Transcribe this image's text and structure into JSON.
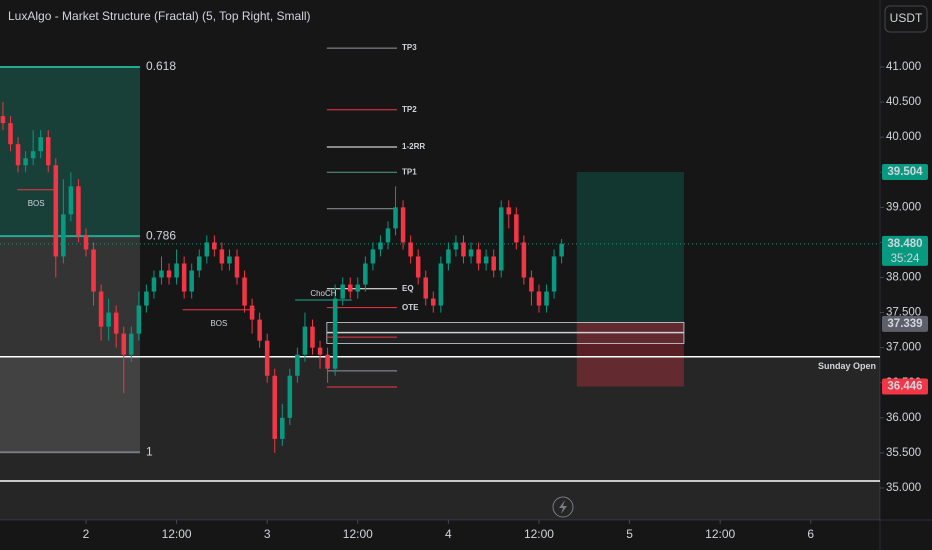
{
  "chart_data": {
    "type": "candlestick",
    "title": "LuxAlgo - Market Structure (Fractal) (5, Top Right, Small)",
    "currency": "USDT",
    "up_color": "#089981",
    "down_color": "#f23645",
    "x": [
      -11,
      -10,
      -9,
      -8,
      -7,
      -6,
      -5,
      -4,
      -3,
      -2,
      -1,
      0,
      1,
      2,
      3,
      4,
      5,
      6,
      7,
      8,
      9,
      10,
      11,
      12,
      13,
      14,
      15,
      16,
      17,
      18,
      19,
      20,
      21,
      22,
      23,
      24,
      25,
      26,
      27,
      28,
      29,
      30,
      31,
      32,
      33,
      34,
      35,
      36,
      37,
      38,
      39,
      40,
      41,
      42,
      43,
      44,
      45,
      46,
      47,
      48,
      49,
      50,
      51,
      52,
      53,
      54,
      55,
      56,
      57,
      58,
      59,
      60,
      61,
      62,
      63
    ],
    "open": [
      40.3,
      40.2,
      39.9,
      39.6,
      39.7,
      39.8,
      40.0,
      39.6,
      38.3,
      38.9,
      39.3,
      38.6,
      38.4,
      37.8,
      37.3,
      37.5,
      37.2,
      36.9,
      37.2,
      37.6,
      37.8,
      38.0,
      38.1,
      38.0,
      38.2,
      37.8,
      38.1,
      38.3,
      38.5,
      38.4,
      38.2,
      38.3,
      38.0,
      37.6,
      37.4,
      37.1,
      36.6,
      35.7,
      36.0,
      36.6,
      36.9,
      37.3,
      37.0,
      36.9,
      36.7,
      37.7,
      37.9,
      37.8,
      37.9,
      38.2,
      38.4,
      38.5,
      38.7,
      39.0,
      38.5,
      38.3,
      38.0,
      37.7,
      37.6,
      38.2,
      38.4,
      38.5,
      38.3,
      38.4,
      38.2,
      38.3,
      38.1,
      39.0,
      38.9,
      38.5,
      38.0,
      37.8,
      37.6,
      37.8,
      38.3
    ],
    "high": [
      40.5,
      40.3,
      40.0,
      39.8,
      40.1,
      40.1,
      40.1,
      39.7,
      39.4,
      39.5,
      39.4,
      38.7,
      38.5,
      37.9,
      37.7,
      37.6,
      37.3,
      37.3,
      37.8,
      37.9,
      38.1,
      38.3,
      38.2,
      38.4,
      38.3,
      38.2,
      38.4,
      38.6,
      38.6,
      38.5,
      38.4,
      38.4,
      38.1,
      37.7,
      37.5,
      37.2,
      36.7,
      36.2,
      36.7,
      37.0,
      37.5,
      37.4,
      37.1,
      37.0,
      37.9,
      38.0,
      38.0,
      38.0,
      38.3,
      38.5,
      38.6,
      38.8,
      39.3,
      39.1,
      38.6,
      38.4,
      38.1,
      37.8,
      38.3,
      38.5,
      38.6,
      38.6,
      38.5,
      38.5,
      38.4,
      38.4,
      39.1,
      39.1,
      39.0,
      38.6,
      38.1,
      37.9,
      37.9,
      38.4,
      38.55
    ],
    "low": [
      40.1,
      39.8,
      39.5,
      39.5,
      39.6,
      39.7,
      39.5,
      38.0,
      38.2,
      38.8,
      38.5,
      38.3,
      37.6,
      37.1,
      37.1,
      37.0,
      36.35,
      36.8,
      37.1,
      37.5,
      37.7,
      37.9,
      37.9,
      37.9,
      37.7,
      37.7,
      38.0,
      38.2,
      38.3,
      38.1,
      38.1,
      37.9,
      37.5,
      37.2,
      37.0,
      36.5,
      35.5,
      35.6,
      35.9,
      36.5,
      36.8,
      36.9,
      36.7,
      36.5,
      36.6,
      37.6,
      37.7,
      37.7,
      37.8,
      38.1,
      38.3,
      38.4,
      38.6,
      38.4,
      38.2,
      37.9,
      37.6,
      37.5,
      37.5,
      38.1,
      38.3,
      38.2,
      38.2,
      38.1,
      38.1,
      38.0,
      38.0,
      38.7,
      38.4,
      37.9,
      37.6,
      37.5,
      37.5,
      37.7,
      38.2
    ],
    "close": [
      40.2,
      39.9,
      39.6,
      39.7,
      39.8,
      40.0,
      39.6,
      38.3,
      38.9,
      39.3,
      38.6,
      38.4,
      37.8,
      37.3,
      37.5,
      37.2,
      36.9,
      37.2,
      37.6,
      37.8,
      38.0,
      38.1,
      38.0,
      38.2,
      37.8,
      38.1,
      38.3,
      38.5,
      38.4,
      38.2,
      38.3,
      38.0,
      37.6,
      37.4,
      37.1,
      36.6,
      35.7,
      36.0,
      36.6,
      36.9,
      37.3,
      37.0,
      36.9,
      36.7,
      37.7,
      37.9,
      37.8,
      37.9,
      38.2,
      38.4,
      38.5,
      38.7,
      39.0,
      38.5,
      38.3,
      38.0,
      37.7,
      37.6,
      38.2,
      38.4,
      38.5,
      38.3,
      38.4,
      38.2,
      38.3,
      38.1,
      39.0,
      38.9,
      38.5,
      38.0,
      37.8,
      37.6,
      37.8,
      38.3,
      38.48
    ],
    "xlim": [
      -11.39,
      105.17
    ],
    "ylim": [
      34.544,
      41.955
    ],
    "xticks": [
      {
        "value": 0,
        "label": "2"
      },
      {
        "value": 12,
        "label": "12:00"
      },
      {
        "value": 24,
        "label": "3"
      },
      {
        "value": 36,
        "label": "12:00"
      },
      {
        "value": 48,
        "label": "4"
      },
      {
        "value": 60,
        "label": "12:00"
      },
      {
        "value": 72,
        "label": "5"
      },
      {
        "value": 84,
        "label": "12:00"
      },
      {
        "value": 96,
        "label": "6"
      }
    ],
    "yticks": [
      {
        "value": 41,
        "label": "41.000"
      },
      {
        "value": 40.5,
        "label": "40.500"
      },
      {
        "value": 40,
        "label": "40.000"
      },
      {
        "value": 39.5,
        "label": "39.500"
      },
      {
        "value": 39,
        "label": "39.000"
      },
      {
        "value": 38.5,
        "label": "38.500"
      },
      {
        "value": 38,
        "label": "38.000"
      },
      {
        "value": 37.5,
        "label": "37.500"
      },
      {
        "value": 37,
        "label": "37.000"
      },
      {
        "value": 36.5,
        "label": "36.500"
      },
      {
        "value": 36,
        "label": "36.000"
      },
      {
        "value": 35.5,
        "label": "35.500"
      },
      {
        "value": 35,
        "label": "35.000"
      }
    ],
    "zones": [
      {
        "x": [
          -11.39,
          7.15
        ],
        "y": [
          38.59,
          41.0
        ],
        "color": "rgba(34,171,148,0.28)"
      },
      {
        "x": [
          -11.39,
          7.15
        ],
        "y": [
          35.51,
          38.59
        ],
        "color": "rgba(255,255,255,0.13)"
      },
      {
        "x": [
          -11.39,
          105.17
        ],
        "y": [
          34.544,
          36.87
        ],
        "color": "rgba(255,255,255,0.07)"
      },
      {
        "x": [
          65.0,
          79.2
        ],
        "y": [
          37.36,
          39.504
        ],
        "color": "rgba(8,153,129,0.25)"
      },
      {
        "x": [
          65.0,
          79.2
        ],
        "y": [
          36.446,
          37.36
        ],
        "color": "rgba(242,54,69,0.3)"
      },
      {
        "x": [
          31.9,
          79.2
        ],
        "y": [
          37.22,
          37.36
        ],
        "color": "rgba(255,255,255,0.05)"
      },
      {
        "x": [
          31.9,
          79.2
        ],
        "y": [
          37.06,
          37.21
        ],
        "color": "rgba(255,255,255,0.05)"
      }
    ],
    "fib_levels": [
      {
        "label": "0.618",
        "value": 41.0,
        "color": "#22ab94"
      },
      {
        "label": "0.786",
        "value": 38.59,
        "color": "#22ab94"
      },
      {
        "label": "1",
        "value": 35.51,
        "color": "#787b86"
      }
    ],
    "levels": [
      {
        "label": "TP3",
        "value": 41.27,
        "color": "#9598a1"
      },
      {
        "label": "TP2",
        "value": 40.39,
        "color": "#f23645"
      },
      {
        "label": "1-2RR",
        "value": 39.86,
        "color": "#ffffff"
      },
      {
        "label": "TP1",
        "value": 39.5,
        "color": "#5a9a8e"
      },
      {
        "label": "EQ",
        "value": 37.84,
        "color": "#ffffff"
      },
      {
        "label": "OTE",
        "value": 37.57,
        "color": "#f23645"
      }
    ],
    "lines": [
      {
        "value": 38.98,
        "color": "#9598a1"
      },
      {
        "value": 37.15,
        "color": "#f23645"
      },
      {
        "value": 36.67,
        "color": "#9598a1"
      },
      {
        "value": 36.44,
        "color": "#f23645"
      }
    ],
    "structure": [
      {
        "label": "BOS",
        "value": 39.25,
        "x": [
          -9.1,
          -4.1
        ],
        "color": "#f23645"
      },
      {
        "label": "BOS",
        "value": 37.54,
        "x": [
          12.8,
          22.4
        ],
        "color": "#f23645"
      },
      {
        "label": "ChoCH",
        "value": 37.68,
        "x": [
          27.7,
          35.2
        ],
        "color": "#22ab94"
      }
    ],
    "sunday_open": {
      "label": "Sunday Open",
      "value": 36.87
    },
    "bottom_line": 35.1,
    "price_labels": [
      {
        "value": 39.504,
        "value_label": "39.504",
        "color": "#089981"
      },
      {
        "value": 38.48,
        "value_label": "38.480",
        "countdown": "35:24",
        "color": "#089981"
      },
      {
        "value": 37.339,
        "value_label": "37.339",
        "color": "#5d606b"
      },
      {
        "value": 36.446,
        "value_label": "36.446",
        "color": "#f23645"
      }
    ]
  }
}
